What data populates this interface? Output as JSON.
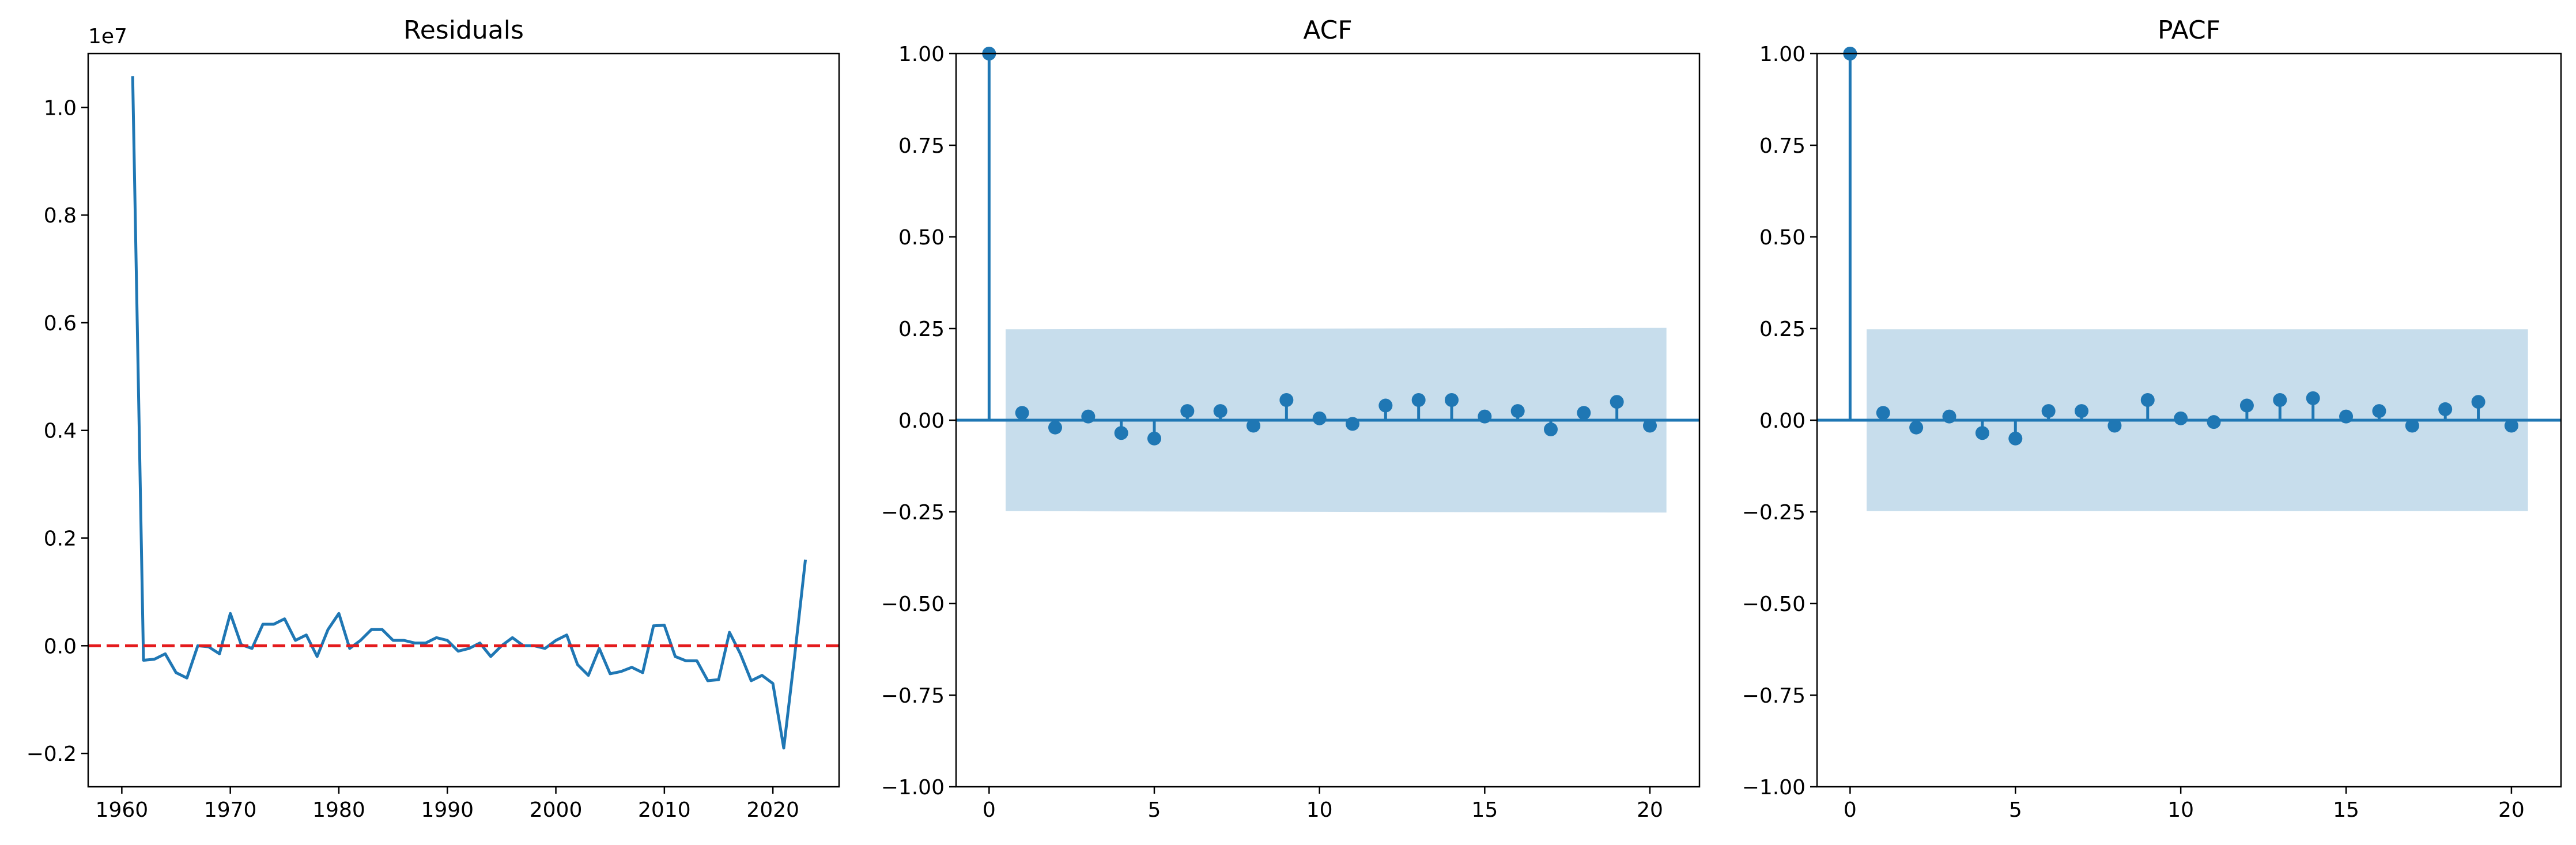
{
  "figure": {
    "background": "#ffffff"
  },
  "chart_data": [
    {
      "type": "line",
      "title": "Residuals",
      "xlabel": "",
      "ylabel": "",
      "y_offset_label": "1e7",
      "xlim": [
        1956.9,
        2026.1
      ],
      "ylim": [
        -0.262,
        1.1
      ],
      "xticks": [
        1960,
        1970,
        1980,
        1990,
        2000,
        2010,
        2020
      ],
      "yticks": [
        -0.2,
        0.0,
        0.2,
        0.4,
        0.6,
        0.8,
        1.0
      ],
      "ytick_labels": [
        "−0.2",
        "0.0",
        "0.2",
        "0.4",
        "0.6",
        "0.8",
        "1.0"
      ],
      "grid": false,
      "line_color": "#1f77b4",
      "series": [
        {
          "x": [
            1961,
            1962,
            1963,
            1964,
            1965,
            1966,
            1967,
            1968,
            1969,
            1970,
            1971,
            1972,
            1973,
            1974,
            1975,
            1976,
            1977,
            1978,
            1979,
            1980,
            1981,
            1982,
            1983,
            1984,
            1985,
            1986,
            1987,
            1988,
            1989,
            1990,
            1991,
            1992,
            1993,
            1994,
            1995,
            1996,
            1997,
            1998,
            1999,
            2000,
            2001,
            2002,
            2003,
            2004,
            2005,
            2006,
            2007,
            2008,
            2009,
            2010,
            2011,
            2012,
            2013,
            2014,
            2015,
            2016,
            2017,
            2018,
            2019,
            2020,
            2021,
            2022,
            2023
          ],
          "y": [
            1.058,
            -0.027,
            -0.025,
            -0.015,
            -0.05,
            -0.06,
            0.0,
            -0.002,
            -0.015,
            0.06,
            0.002,
            -0.005,
            0.04,
            0.04,
            0.05,
            0.01,
            0.02,
            -0.02,
            0.03,
            0.06,
            -0.005,
            0.01,
            0.03,
            0.03,
            0.01,
            0.01,
            0.005,
            0.005,
            0.015,
            0.01,
            -0.01,
            -0.005,
            0.005,
            -0.02,
            0.0,
            0.015,
            0.0,
            0.0,
            -0.005,
            0.01,
            0.02,
            -0.035,
            -0.055,
            -0.005,
            -0.052,
            -0.048,
            -0.04,
            -0.05,
            0.037,
            0.038,
            -0.02,
            -0.028,
            -0.028,
            -0.065,
            -0.063,
            0.025,
            -0.015,
            -0.065,
            -0.055,
            -0.07,
            -0.19,
            -0.02,
            0.16
          ]
        }
      ],
      "reference_line": {
        "y": 0.0,
        "color": "#e41a1c",
        "style": "dashed"
      }
    },
    {
      "type": "stem",
      "title": "ACF",
      "xlim": [
        -1.0,
        21.5
      ],
      "ylim": [
        -1.0,
        1.0
      ],
      "xticks": [
        0,
        5,
        10,
        15,
        20
      ],
      "yticks": [
        -1.0,
        -0.75,
        -0.5,
        -0.25,
        0.0,
        0.25,
        0.5,
        0.75,
        1.0
      ],
      "ytick_labels": [
        "−1.00",
        "−0.75",
        "−0.50",
        "−0.25",
        "0.00",
        "0.25",
        "0.50",
        "0.75",
        "1.00"
      ],
      "grid": false,
      "marker_color": "#1f77b4",
      "band_color": "#1f77b4",
      "confidence_band": {
        "x_start": 0.5,
        "x_end": 20.5,
        "upper_start": 0.248,
        "upper_end": 0.252,
        "lower_start": -0.248,
        "lower_end": -0.252
      },
      "lags": [
        0,
        1,
        2,
        3,
        4,
        5,
        6,
        7,
        8,
        9,
        10,
        11,
        12,
        13,
        14,
        15,
        16,
        17,
        18,
        19,
        20
      ],
      "values": [
        1.0,
        0.02,
        -0.02,
        0.01,
        -0.035,
        -0.05,
        0.025,
        0.025,
        -0.015,
        0.055,
        0.005,
        -0.01,
        0.04,
        0.055,
        0.055,
        0.01,
        0.025,
        -0.025,
        0.02,
        0.05,
        -0.015
      ]
    },
    {
      "type": "stem",
      "title": "PACF",
      "xlim": [
        -1.0,
        21.5
      ],
      "ylim": [
        -1.0,
        1.0
      ],
      "xticks": [
        0,
        5,
        10,
        15,
        20
      ],
      "yticks": [
        -1.0,
        -0.75,
        -0.5,
        -0.25,
        0.0,
        0.25,
        0.5,
        0.75,
        1.0
      ],
      "ytick_labels": [
        "−1.00",
        "−0.75",
        "−0.50",
        "−0.25",
        "0.00",
        "0.25",
        "0.50",
        "0.75",
        "1.00"
      ],
      "grid": false,
      "marker_color": "#1f77b4",
      "band_color": "#1f77b4",
      "confidence_band": {
        "x_start": 0.5,
        "x_end": 20.5,
        "upper_start": 0.248,
        "upper_end": 0.248,
        "lower_start": -0.248,
        "lower_end": -0.248
      },
      "lags": [
        0,
        1,
        2,
        3,
        4,
        5,
        6,
        7,
        8,
        9,
        10,
        11,
        12,
        13,
        14,
        15,
        16,
        17,
        18,
        19,
        20
      ],
      "values": [
        1.0,
        0.02,
        -0.02,
        0.01,
        -0.035,
        -0.05,
        0.025,
        0.025,
        -0.015,
        0.055,
        0.005,
        -0.005,
        0.04,
        0.055,
        0.06,
        0.01,
        0.025,
        -0.015,
        0.03,
        0.05,
        -0.015
      ]
    }
  ]
}
